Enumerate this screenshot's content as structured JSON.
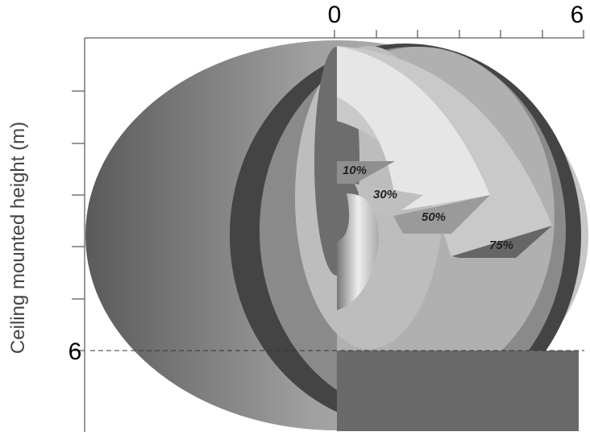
{
  "axis": {
    "top_start": "0",
    "top_end": "6",
    "left_mark": "6",
    "y_label": "Ceiling mounted height (m)"
  },
  "zones": [
    "10%",
    "30%",
    "50%",
    "75%"
  ]
}
